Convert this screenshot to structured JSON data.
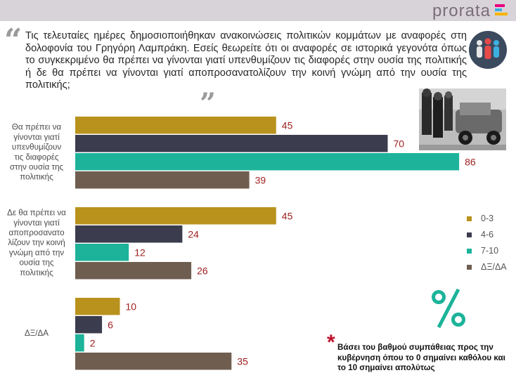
{
  "brand": {
    "name": "prorata",
    "bar_colors": [
      "#e6007e",
      "#3cb0e0",
      "#f3b500"
    ]
  },
  "question": "Τις τελευταίες ημέρες δημοσιοποιήθηκαν ανακοινώσεις πολιτικών κομμάτων με αναφορές στη δολοφονία του Γρηγόρη Λαμπράκη. Εσείς θεωρείτε ότι οι αναφορές σε ιστορικά γεγονότα όπως το συγκεκριμένο θα πρέπει να γίνονται γιατί υπενθυμίζουν τις διαφορές στην ουσία της πολιτικής ή δε θα πρέπει να γίνονται γιατί αποπροσανατολίζουν την κοινή γνώμη από την ουσία της πολιτικής;",
  "icons": {
    "quote_open": "quote-open-icon",
    "quote_close": "quote-close-icon",
    "people": "people-icon",
    "photo": "historical-photo",
    "percent": "percent-icon",
    "asterisk": "asterisk-icon"
  },
  "chart_data": {
    "type": "bar",
    "orientation": "horizontal",
    "categories": [
      "Θα πρέπει να γίνονται γιατί υπενθυμίζουν τις διαφορές στην ουσία της πολιτικής",
      "Δε θα πρέπει να γίνονται γιατί αποπροσανατολίζουν την κοινή γνώμη από την ουσία της πολιτικής",
      "ΔΞ/ΔΑ"
    ],
    "category_lines": [
      [
        "Θα πρέπει να",
        "γίνονται γιατί",
        "υπενθυμίζουν",
        "τις διαφορές",
        "στην ουσία της",
        "πολιτικής"
      ],
      [
        "Δε θα πρέπει να",
        "γίνονται γιατί",
        "αποπροσανατο",
        "λίζουν την κοινή",
        "γνώμη από την",
        "ουσία της",
        "πολιτικής"
      ],
      [
        "ΔΞ/ΔΑ"
      ]
    ],
    "series": [
      {
        "name": "0-3",
        "color": "#b8921c",
        "values": [
          45,
          45,
          10
        ]
      },
      {
        "name": "4-6",
        "color": "#3b3d4e",
        "values": [
          70,
          24,
          6
        ]
      },
      {
        "name": "7-10",
        "color": "#1cb39a",
        "values": [
          86,
          12,
          2
        ]
      },
      {
        "name": "ΔΞ/ΔΑ",
        "color": "#6f5e50",
        "values": [
          39,
          26,
          35
        ]
      }
    ],
    "xlim": [
      0,
      100
    ],
    "value_label_color": "#9e1e1e",
    "grid": false,
    "legend_position": "right"
  },
  "note": "Βάσει του βαθμού συμπάθειας προς την κυβέρνηση όπου το 0 σημαίνει καθόλου και το 10 σημαίνει απολύτως"
}
